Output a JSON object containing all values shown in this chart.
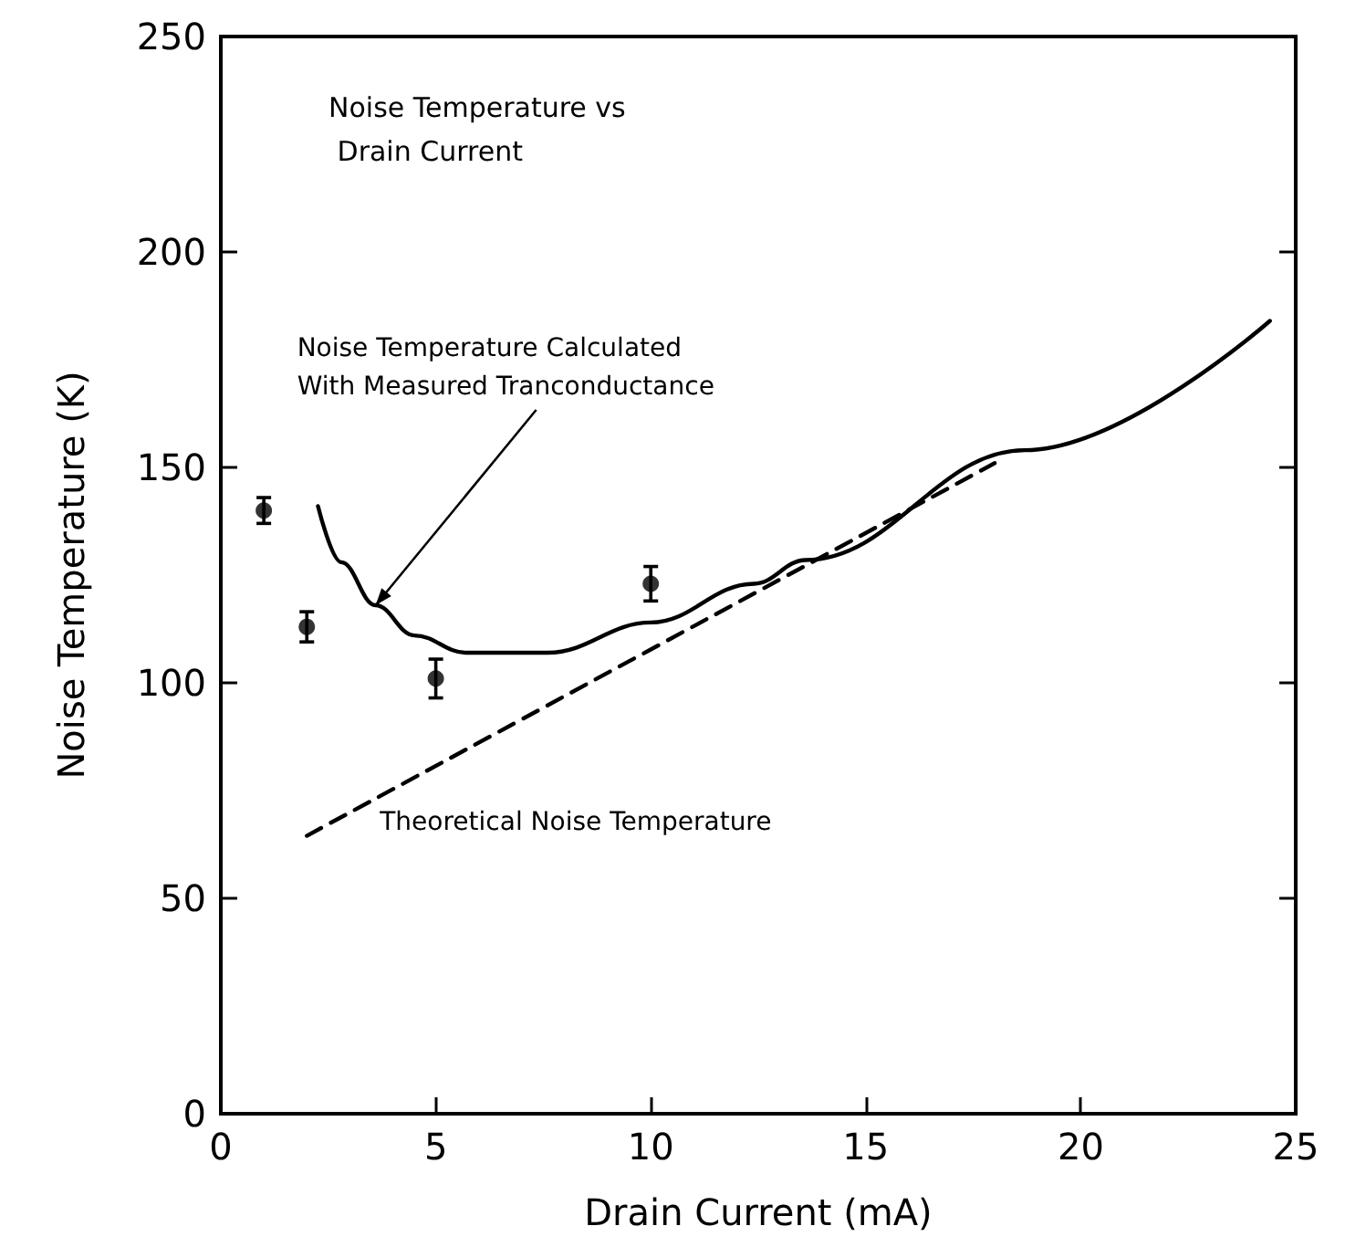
{
  "chart_data": {
    "type": "scatter",
    "title": "Noise Temperature vs Drain Current",
    "xlabel": "Drain Current (mA)",
    "ylabel": "Noise Temperature (K)",
    "xlim": [
      0,
      25
    ],
    "xticks": [
      0,
      5,
      10,
      15,
      20,
      25
    ],
    "ylim": [
      0,
      250
    ],
    "yticks": [
      0,
      50,
      100,
      150,
      200,
      250
    ],
    "grid": false,
    "series": [
      {
        "color": "#000000",
        "marker": "circle",
        "x": [
          1,
          2,
          5,
          10
        ],
        "values": [
          140,
          113,
          101,
          123
        ],
        "errors": [
          3,
          3.5,
          4.5,
          4
        ]
      },
      {
        "type": "line",
        "color": "#000000",
        "marker": "none",
        "line_style": "solid",
        "x": [
          2.26,
          2.8,
          3.6,
          4.5,
          5.7,
          7.6,
          10,
          12.4,
          13.6,
          18.7,
          24.4
        ],
        "values": [
          141,
          128,
          118,
          111,
          107,
          107,
          114,
          123,
          128.5,
          154,
          184
        ]
      },
      {
        "type": "line",
        "color": "#000000",
        "marker": "none",
        "line_style": "dashed",
        "x": [
          2,
          18
        ],
        "values": [
          64.5,
          151
        ]
      }
    ],
    "annotations": [
      {
        "text": "Noise Temperature Calculated\nWith Measured Tranconductance",
        "x": 3.6,
        "y": 118
      },
      {
        "text": "Theoretical Noise Temperature",
        "x": 2,
        "y": 64.5
      }
    ]
  }
}
